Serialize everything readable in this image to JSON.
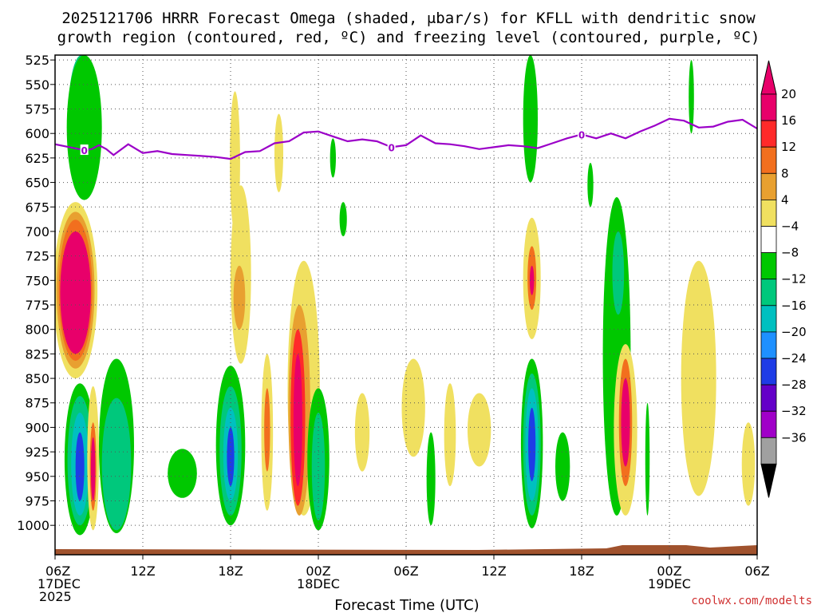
{
  "colors": {
    "freezing_level": "#9b00c8",
    "terrain": "#a0522d",
    "credit": "#d03030",
    "grid": "#555555"
  },
  "chart_data": {
    "type": "heatmap",
    "title_line1": "2025121706 HRRR Forecast Omega (shaded, μbar/s) for KFLL with dendritic snow",
    "title_line2": "growth region (contoured, red, ºC) and freezing level (contoured, purple, ºC)",
    "xlabel": "Forecast Time (UTC)",
    "x_range_hours": [
      0,
      48
    ],
    "y_range_mb": [
      520,
      1030
    ],
    "y_ticks": [
      "525",
      "550",
      "575",
      "600",
      "625",
      "650",
      "675",
      "700",
      "725",
      "750",
      "775",
      "800",
      "825",
      "850",
      "875",
      "900",
      "925",
      "950",
      "975",
      "1000"
    ],
    "x_ticks": [
      {
        "h": 0,
        "line1": "06Z",
        "line2": "17DEC",
        "line3": "2025"
      },
      {
        "h": 6,
        "line1": "12Z"
      },
      {
        "h": 12,
        "line1": "18Z"
      },
      {
        "h": 18,
        "line1": "00Z",
        "line2": "18DEC"
      },
      {
        "h": 24,
        "line1": "06Z"
      },
      {
        "h": 30,
        "line1": "12Z"
      },
      {
        "h": 36,
        "line1": "18Z"
      },
      {
        "h": 42,
        "line1": "00Z",
        "line2": "19DEC"
      },
      {
        "h": 48,
        "line1": "06Z"
      }
    ],
    "colorbar": {
      "labels": [
        "20",
        "16",
        "12",
        "8",
        "4",
        "−4",
        "−8",
        "−12",
        "−16",
        "−20",
        "−24",
        "−28",
        "−32",
        "−36"
      ],
      "colors": [
        "#e8006a",
        "#ff2a2a",
        "#f26f1e",
        "#e8a030",
        "#f0e060",
        "#ffffff",
        "#00c800",
        "#00c87c",
        "#00c0c0",
        "#1e90ff",
        "#1e3ce6",
        "#6400c8",
        "#a000c8",
        "#a0a0a0"
      ],
      "top_color": "#e8006a",
      "bottom_color": "#000000"
    },
    "freezing_level_contour": {
      "label": "0",
      "hours": [
        0,
        1,
        2,
        2.5,
        3,
        3.5,
        4,
        5,
        6,
        7,
        8,
        9,
        10,
        11,
        12,
        13,
        14,
        15,
        16,
        17,
        18,
        19,
        20,
        21,
        22,
        23,
        24,
        25,
        26,
        27,
        28,
        29,
        30,
        31,
        32,
        33,
        34,
        35,
        36,
        37,
        38,
        39,
        40,
        41,
        42,
        43,
        44,
        45,
        46,
        47,
        48
      ],
      "pressure": [
        611,
        614,
        617,
        616,
        612,
        616,
        622,
        611,
        620,
        618,
        621,
        622,
        623,
        624,
        626,
        619,
        618,
        610,
        608,
        599,
        598,
        603,
        608,
        606,
        608,
        614,
        612,
        602,
        610,
        611,
        613,
        616,
        614,
        612,
        613,
        615,
        610,
        605,
        601,
        605,
        600,
        605,
        598,
        592,
        585,
        587,
        594,
        593,
        588,
        586,
        595
      ],
      "label_hours": [
        2,
        23,
        36
      ]
    },
    "omega_regions": [
      {
        "value": -12,
        "hour": 1.8,
        "p_top": 520,
        "p_bot": 645,
        "halfwidth": 0.9
      },
      {
        "value": -8,
        "hour": 2.0,
        "p_top": 520,
        "p_bot": 668,
        "halfwidth": 1.2
      },
      {
        "value": -8,
        "hour": 1.7,
        "p_top": 855,
        "p_bot": 1010,
        "halfwidth": 1.05
      },
      {
        "value": -12,
        "hour": 1.7,
        "p_top": 868,
        "p_bot": 1000,
        "halfwidth": 0.85
      },
      {
        "value": -16,
        "hour": 1.7,
        "p_top": 885,
        "p_bot": 990,
        "halfwidth": 0.6
      },
      {
        "value": -24,
        "hour": 1.7,
        "p_top": 905,
        "p_bot": 975,
        "halfwidth": 0.3
      },
      {
        "value": 4,
        "hour": 2.6,
        "p_top": 858,
        "p_bot": 1005,
        "halfwidth": 0.4
      },
      {
        "value": 12,
        "hour": 2.6,
        "p_top": 895,
        "p_bot": 985,
        "halfwidth": 0.22
      },
      {
        "value": 20,
        "hour": 2.6,
        "p_top": 910,
        "p_bot": 975,
        "halfwidth": 0.15
      },
      {
        "value": 4,
        "hour": 1.4,
        "p_top": 670,
        "p_bot": 850,
        "halfwidth": 1.5
      },
      {
        "value": 8,
        "hour": 1.4,
        "p_top": 680,
        "p_bot": 840,
        "halfwidth": 1.3
      },
      {
        "value": 12,
        "hour": 1.4,
        "p_top": 688,
        "p_bot": 832,
        "halfwidth": 1.15
      },
      {
        "value": 20,
        "hour": 1.4,
        "p_top": 700,
        "p_bot": 825,
        "halfwidth": 1.05
      },
      {
        "value": -8,
        "hour": 4.2,
        "p_top": 830,
        "p_bot": 1008,
        "halfwidth": 1.2
      },
      {
        "value": -12,
        "hour": 4.2,
        "p_top": 870,
        "p_bot": 1005,
        "halfwidth": 1.0
      },
      {
        "value": -8,
        "hour": 8.7,
        "p_top": 922,
        "p_bot": 972,
        "halfwidth": 1.0
      },
      {
        "value": 4,
        "hour": 12.7,
        "p_top": 653,
        "p_bot": 835,
        "halfwidth": 0.7
      },
      {
        "value": 8,
        "hour": 12.6,
        "p_top": 735,
        "p_bot": 800,
        "halfwidth": 0.4
      },
      {
        "value": -8,
        "hour": 12.0,
        "p_top": 837,
        "p_bot": 1000,
        "halfwidth": 1.0
      },
      {
        "value": -12,
        "hour": 12.0,
        "p_top": 858,
        "p_bot": 990,
        "halfwidth": 0.75
      },
      {
        "value": -16,
        "hour": 12.0,
        "p_top": 880,
        "p_bot": 975,
        "halfwidth": 0.5
      },
      {
        "value": -24,
        "hour": 12.0,
        "p_top": 900,
        "p_bot": 960,
        "halfwidth": 0.25
      },
      {
        "value": 4,
        "hour": 12.3,
        "p_top": 557,
        "p_bot": 700,
        "halfwidth": 0.35
      },
      {
        "value": 4,
        "hour": 14.5,
        "p_top": 825,
        "p_bot": 985,
        "halfwidth": 0.4
      },
      {
        "value": 12,
        "hour": 14.5,
        "p_top": 860,
        "p_bot": 945,
        "halfwidth": 0.2
      },
      {
        "value": 4,
        "hour": 15.3,
        "p_top": 580,
        "p_bot": 660,
        "halfwidth": 0.3
      },
      {
        "value": 4,
        "hour": 17.0,
        "p_top": 730,
        "p_bot": 990,
        "halfwidth": 1.1
      },
      {
        "value": 8,
        "hour": 16.7,
        "p_top": 775,
        "p_bot": 990,
        "halfwidth": 0.75
      },
      {
        "value": 16,
        "hour": 16.6,
        "p_top": 800,
        "p_bot": 980,
        "halfwidth": 0.5
      },
      {
        "value": 20,
        "hour": 16.6,
        "p_top": 825,
        "p_bot": 960,
        "halfwidth": 0.3
      },
      {
        "value": -8,
        "hour": 18.0,
        "p_top": 860,
        "p_bot": 1005,
        "halfwidth": 0.75
      },
      {
        "value": -12,
        "hour": 18.0,
        "p_top": 885,
        "p_bot": 995,
        "halfwidth": 0.45
      },
      {
        "value": -8,
        "hour": 19.7,
        "p_top": 670,
        "p_bot": 705,
        "halfwidth": 0.25
      },
      {
        "value": -8,
        "hour": 19.0,
        "p_top": 605,
        "p_bot": 645,
        "halfwidth": 0.2
      },
      {
        "value": 4,
        "hour": 21.0,
        "p_top": 865,
        "p_bot": 945,
        "halfwidth": 0.5
      },
      {
        "value": 4,
        "hour": 24.5,
        "p_top": 830,
        "p_bot": 930,
        "halfwidth": 0.8
      },
      {
        "value": -8,
        "hour": 25.7,
        "p_top": 905,
        "p_bot": 1000,
        "halfwidth": 0.3
      },
      {
        "value": 4,
        "hour": 27.0,
        "p_top": 855,
        "p_bot": 960,
        "halfwidth": 0.4
      },
      {
        "value": 4,
        "hour": 29.0,
        "p_top": 865,
        "p_bot": 940,
        "halfwidth": 0.8
      },
      {
        "value": -8,
        "hour": 32.5,
        "p_top": 520,
        "p_bot": 650,
        "halfwidth": 0.5
      },
      {
        "value": 4,
        "hour": 32.6,
        "p_top": 686,
        "p_bot": 810,
        "halfwidth": 0.6
      },
      {
        "value": 12,
        "hour": 32.6,
        "p_top": 715,
        "p_bot": 780,
        "halfwidth": 0.3
      },
      {
        "value": 20,
        "hour": 32.6,
        "p_top": 735,
        "p_bot": 765,
        "halfwidth": 0.15
      },
      {
        "value": -8,
        "hour": 32.6,
        "p_top": 830,
        "p_bot": 1003,
        "halfwidth": 0.75
      },
      {
        "value": -12,
        "hour": 32.6,
        "p_top": 845,
        "p_bot": 990,
        "halfwidth": 0.6
      },
      {
        "value": -16,
        "hour": 32.6,
        "p_top": 860,
        "p_bot": 975,
        "halfwidth": 0.45
      },
      {
        "value": -24,
        "hour": 32.6,
        "p_top": 880,
        "p_bot": 955,
        "halfwidth": 0.25
      },
      {
        "value": -8,
        "hour": 34.7,
        "p_top": 905,
        "p_bot": 975,
        "halfwidth": 0.5
      },
      {
        "value": -8,
        "hour": 36.6,
        "p_top": 630,
        "p_bot": 675,
        "halfwidth": 0.2
      },
      {
        "value": -8,
        "hour": 38.4,
        "p_top": 665,
        "p_bot": 990,
        "halfwidth": 0.95
      },
      {
        "value": -12,
        "hour": 38.5,
        "p_top": 700,
        "p_bot": 785,
        "halfwidth": 0.4
      },
      {
        "value": 4,
        "hour": 39.0,
        "p_top": 815,
        "p_bot": 990,
        "halfwidth": 0.8
      },
      {
        "value": 12,
        "hour": 39.0,
        "p_top": 830,
        "p_bot": 960,
        "halfwidth": 0.45
      },
      {
        "value": 20,
        "hour": 39.0,
        "p_top": 850,
        "p_bot": 940,
        "halfwidth": 0.3
      },
      {
        "value": -8,
        "hour": 40.5,
        "p_top": 875,
        "p_bot": 990,
        "halfwidth": 0.15
      },
      {
        "value": -8,
        "hour": 43.5,
        "p_top": 525,
        "p_bot": 600,
        "halfwidth": 0.18
      },
      {
        "value": 4,
        "hour": 44.0,
        "p_top": 730,
        "p_bot": 970,
        "halfwidth": 1.2
      },
      {
        "value": 4,
        "hour": 47.4,
        "p_top": 895,
        "p_bot": 980,
        "halfwidth": 0.45
      }
    ],
    "dendritic_growth_region": "not present",
    "terrain": "surface pressure band below 1000 mb"
  },
  "credit": "coolwx.com/modelts"
}
